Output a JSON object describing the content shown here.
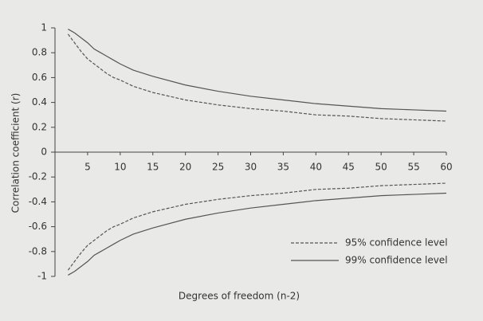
{
  "chart_data": {
    "type": "line",
    "x_label": "Degrees of freedom (n-2)",
    "y_label": "Correlation coefficient (r)",
    "x": [
      2,
      3,
      4,
      5,
      6,
      7,
      8,
      9,
      10,
      12,
      15,
      20,
      25,
      30,
      35,
      40,
      45,
      50,
      55,
      60
    ],
    "series": [
      {
        "name": "95% confidence level",
        "color": "#555555",
        "dash": true,
        "values": [
          0.95,
          0.88,
          0.81,
          0.75,
          0.71,
          0.67,
          0.63,
          0.6,
          0.58,
          0.53,
          0.48,
          0.42,
          0.38,
          0.35,
          0.33,
          0.3,
          0.29,
          0.27,
          0.26,
          0.25
        ],
        "lower": [
          -0.95,
          -0.88,
          -0.81,
          -0.75,
          -0.71,
          -0.67,
          -0.63,
          -0.6,
          -0.58,
          -0.53,
          -0.48,
          -0.42,
          -0.38,
          -0.35,
          -0.33,
          -0.3,
          -0.29,
          -0.27,
          -0.26,
          -0.25
        ]
      },
      {
        "name": "99% confidence level",
        "color": "#555555",
        "dash": false,
        "values": [
          0.99,
          0.96,
          0.92,
          0.88,
          0.83,
          0.8,
          0.77,
          0.74,
          0.71,
          0.66,
          0.61,
          0.54,
          0.49,
          0.45,
          0.42,
          0.39,
          0.37,
          0.35,
          0.34,
          0.33
        ],
        "lower": [
          -0.99,
          -0.96,
          -0.92,
          -0.88,
          -0.83,
          -0.8,
          -0.77,
          -0.74,
          -0.71,
          -0.66,
          -0.61,
          -0.54,
          -0.49,
          -0.45,
          -0.42,
          -0.39,
          -0.37,
          -0.35,
          -0.34,
          -0.33
        ]
      }
    ],
    "xlim": [
      0,
      60
    ],
    "xticks": [
      5,
      10,
      15,
      20,
      25,
      30,
      35,
      40,
      45,
      50,
      55,
      60
    ],
    "ylim": [
      -1,
      1
    ],
    "yticks": [
      1,
      0.8,
      0.6,
      0.4,
      0.2,
      0,
      -0.2,
      -0.4,
      -0.6,
      -0.8,
      -1
    ],
    "legend": "lower-right"
  }
}
